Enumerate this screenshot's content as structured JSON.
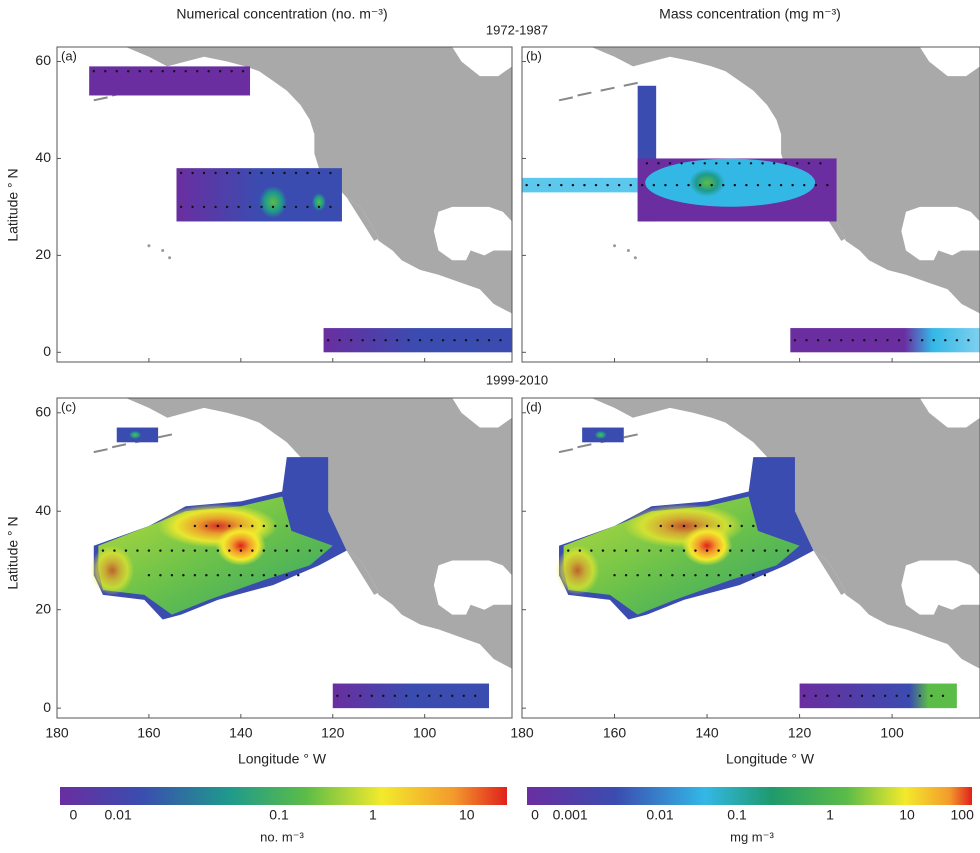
{
  "header": {
    "left": "Numerical concentration (no. m⁻³)",
    "right": "Mass concentration (mg m⁻³)"
  },
  "periods": [
    "1972-1987",
    "1999-2010"
  ],
  "panels": [
    {
      "label": "(a)"
    },
    {
      "label": "(b)"
    },
    {
      "label": "(c)"
    },
    {
      "label": "(d)"
    }
  ],
  "axes": {
    "ylabel": "Latitude ° N",
    "xlabel": "Longitude ° W",
    "xlim": [
      180,
      81
    ],
    "ylim": [
      -2,
      63
    ],
    "xticks": [
      180,
      160,
      140,
      120,
      100
    ],
    "yticks": [
      0,
      20,
      40,
      60
    ]
  },
  "colorbars": [
    {
      "label": "no. m⁻³",
      "ticks": [
        "0",
        "0.01",
        "0.1",
        "1",
        "10"
      ]
    },
    {
      "label": "mg m⁻³",
      "ticks": [
        "0",
        "0.001",
        "0.01",
        "0.1",
        "1",
        "10",
        "100"
      ]
    }
  ]
}
